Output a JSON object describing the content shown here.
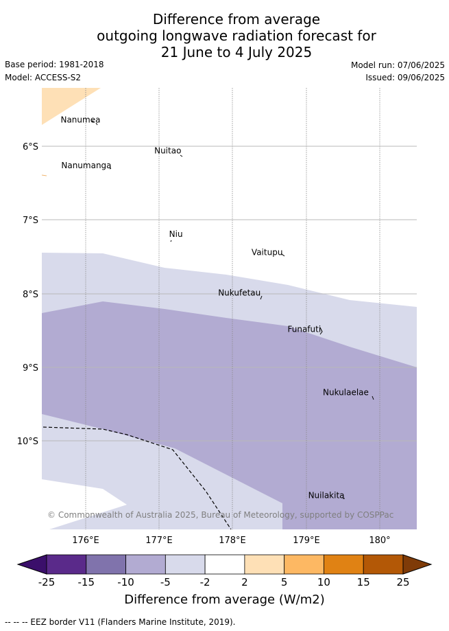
{
  "title": {
    "line1": "Difference from average",
    "line2": "outgoing longwave radiation forecast for",
    "line3": "21 June to 4 July 2025"
  },
  "meta": {
    "base_period": "Base period: 1981-2018",
    "model": "Model: ACCESS-S2",
    "model_run": "Model run: 07/06/2025",
    "issued": "Issued: 09/06/2025"
  },
  "map": {
    "lat_labels": [
      "6°S",
      "7°S",
      "8°S",
      "9°S",
      "10°S"
    ],
    "lon_labels": [
      "176°E",
      "177°E",
      "178°E",
      "179°E",
      "180°"
    ],
    "places": [
      {
        "name": "Nanumea",
        "lon": 176.2,
        "lat": -5.68
      },
      {
        "name": "Nuitao",
        "lon": 177.3,
        "lat": -6.1
      },
      {
        "name": "Nanumanga",
        "lon": 176.35,
        "lat": -6.3
      },
      {
        "name": "Niu",
        "lon": 177.32,
        "lat": -7.23
      },
      {
        "name": "Vaitupu",
        "lon": 178.68,
        "lat": -7.48
      },
      {
        "name": "Nukufetau",
        "lon": 178.38,
        "lat": -8.03
      },
      {
        "name": "Funafuti",
        "lon": 179.2,
        "lat": -8.52
      },
      {
        "name": "Nukulaelae",
        "lon": 179.85,
        "lat": -9.38
      },
      {
        "name": "Nuilakita",
        "lon": 179.52,
        "lat": -10.78
      }
    ],
    "copyright": "© Commonwealth of Australia 2025, Bureau of Meteorology, supported by COSPPac"
  },
  "colorbar": {
    "ticks": [
      "-25",
      "-15",
      "-10",
      "-5",
      "-2",
      "2",
      "5",
      "10",
      "15",
      "25"
    ],
    "colors": [
      "#5a2a8a",
      "#8073ac",
      "#b2abd2",
      "#d8daeb",
      "#ffffff",
      "#fee0b6",
      "#fdb863",
      "#e08214",
      "#b35806"
    ],
    "under_color": "#3b0f6b",
    "over_color": "#7f3b08",
    "label": "Difference from average (W/m2)"
  },
  "legend": {
    "eez": "-- -- -- EEZ border V11 (Flanders Marine Institute, 2019)."
  }
}
